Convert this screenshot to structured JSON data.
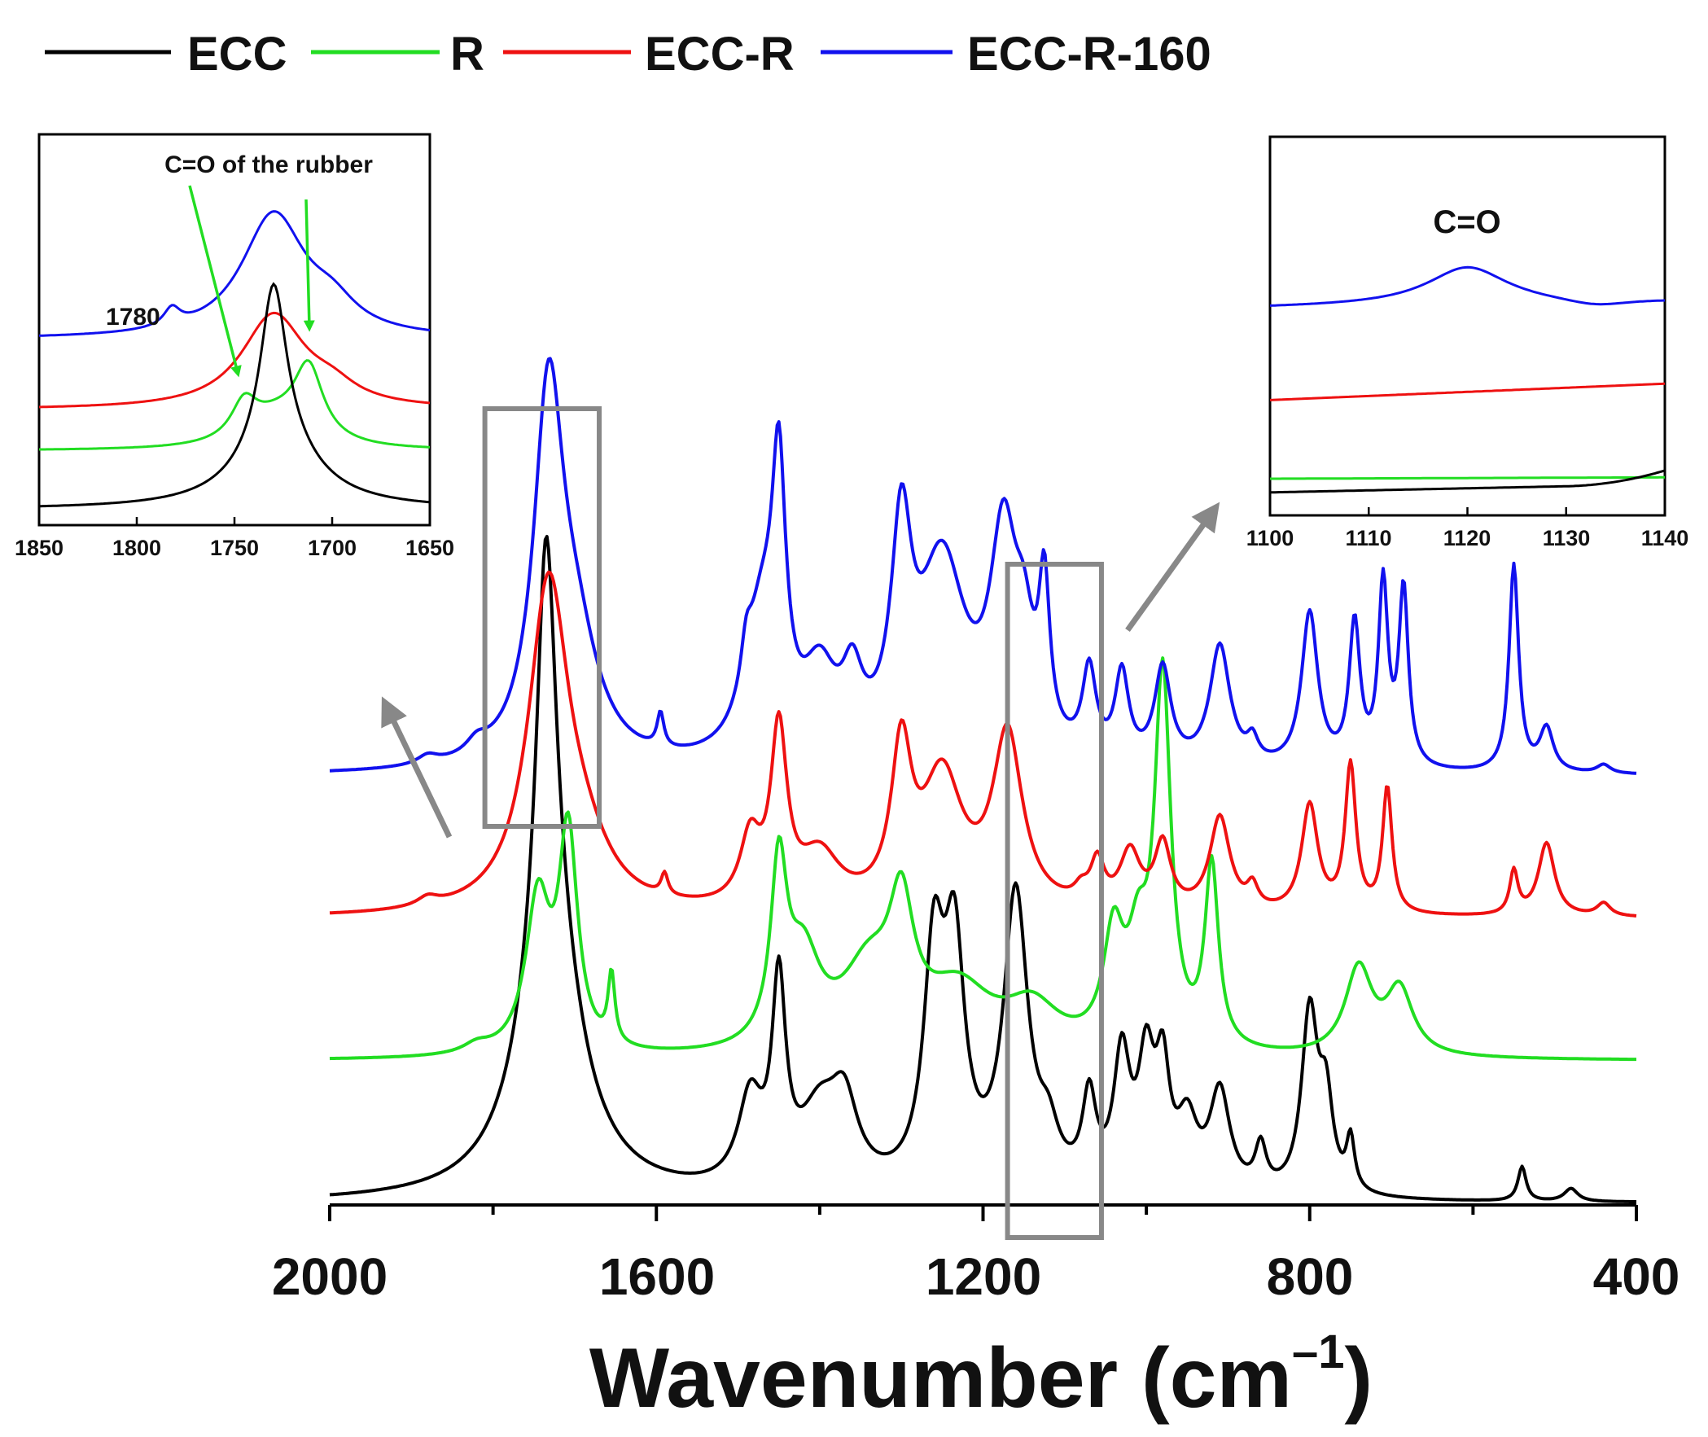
{
  "chart_data": {
    "type": "line",
    "title": "",
    "xlabel": "Wavenumber (cm",
    "xlabel_sup": "–1",
    "xlabel_close": ")",
    "ylabel": "",
    "xlim": [
      2000,
      400
    ],
    "xticks": [
      "2000",
      "1600",
      "1200",
      "800",
      "400"
    ],
    "legend": [
      {
        "name": "ECC",
        "color": "#000000"
      },
      {
        "name": "R",
        "color": "#22dd22"
      },
      {
        "name": "ECC-R",
        "color": "#ee1111"
      },
      {
        "name": "ECC-R-160",
        "color": "#1111ee"
      }
    ],
    "series": [
      {
        "name": "ECC",
        "color": "#000000",
        "offset": 0,
        "peaks": [
          [
            1735,
            0.9,
            14
          ],
          [
            1730,
            0.65,
            42
          ],
          [
            1450,
            0.45,
            10
          ],
          [
            1485,
            0.2,
            18
          ],
          [
            1400,
            0.17,
            30
          ],
          [
            1370,
            0.17,
            20
          ],
          [
            1260,
            0.52,
            15
          ],
          [
            1235,
            0.52,
            15
          ],
          [
            1160,
            0.68,
            18
          ],
          [
            1120,
            0.1,
            15
          ],
          [
            1070,
            0.2,
            10
          ],
          [
            1030,
            0.3,
            12
          ],
          [
            1000,
            0.28,
            12
          ],
          [
            980,
            0.25,
            10
          ],
          [
            950,
            0.15,
            15
          ],
          [
            910,
            0.23,
            15
          ],
          [
            860,
            0.1,
            8
          ],
          [
            800,
            0.42,
            12
          ],
          [
            780,
            0.2,
            10
          ],
          [
            750,
            0.12,
            6
          ],
          [
            540,
            0.08,
            6
          ],
          [
            480,
            0.03,
            10
          ]
        ]
      },
      {
        "name": "R",
        "color": "#22dd22",
        "offset": 0.33,
        "peaks": [
          [
            1745,
            0.35,
            18
          ],
          [
            1708,
            0.5,
            14
          ],
          [
            1820,
            0.02,
            20
          ],
          [
            1655,
            0.16,
            5
          ],
          [
            1450,
            0.4,
            12
          ],
          [
            1420,
            0.2,
            25
          ],
          [
            1340,
            0.18,
            40
          ],
          [
            1300,
            0.28,
            18
          ],
          [
            1230,
            0.14,
            50
          ],
          [
            1140,
            0.1,
            40
          ],
          [
            1040,
            0.25,
            15
          ],
          [
            980,
            0.85,
            12
          ],
          [
            1010,
            0.2,
            15
          ],
          [
            920,
            0.42,
            10
          ],
          [
            740,
            0.2,
            20
          ],
          [
            690,
            0.15,
            20
          ]
        ]
      },
      {
        "name": "ECC-R",
        "color": "#ee1111",
        "offset": 0.66,
        "peaks": [
          [
            1732,
            0.75,
            30
          ],
          [
            1690,
            0.1,
            40
          ],
          [
            1880,
            0.02,
            15
          ],
          [
            1590,
            0.05,
            5
          ],
          [
            1450,
            0.4,
            12
          ],
          [
            1485,
            0.15,
            15
          ],
          [
            1400,
            0.12,
            30
          ],
          [
            1300,
            0.35,
            15
          ],
          [
            1250,
            0.3,
            30
          ],
          [
            1170,
            0.4,
            22
          ],
          [
            1080,
            0.03,
            10
          ],
          [
            1060,
            0.1,
            10
          ],
          [
            1020,
            0.13,
            15
          ],
          [
            980,
            0.15,
            12
          ],
          [
            910,
            0.22,
            15
          ],
          [
            870,
            0.05,
            8
          ],
          [
            800,
            0.25,
            12
          ],
          [
            750,
            0.34,
            8
          ],
          [
            705,
            0.29,
            7
          ],
          [
            550,
            0.1,
            6
          ],
          [
            510,
            0.17,
            12
          ],
          [
            440,
            0.03,
            10
          ]
        ]
      },
      {
        "name": "ECC-R-160",
        "color": "#1111ee",
        "offset": 0.99,
        "peaks": [
          [
            1732,
            0.82,
            22
          ],
          [
            1700,
            0.25,
            35
          ],
          [
            1820,
            0.03,
            15
          ],
          [
            1880,
            0.02,
            15
          ],
          [
            1595,
            0.08,
            5
          ],
          [
            1450,
            0.55,
            10
          ],
          [
            1470,
            0.32,
            25
          ],
          [
            1490,
            0.1,
            8
          ],
          [
            1400,
            0.18,
            25
          ],
          [
            1360,
            0.15,
            15
          ],
          [
            1300,
            0.48,
            15
          ],
          [
            1250,
            0.45,
            35
          ],
          [
            1175,
            0.48,
            20
          ],
          [
            1125,
            0.35,
            8
          ],
          [
            1150,
            0.2,
            15
          ],
          [
            1070,
            0.2,
            10
          ],
          [
            1030,
            0.2,
            10
          ],
          [
            980,
            0.22,
            12
          ],
          [
            910,
            0.28,
            15
          ],
          [
            870,
            0.05,
            8
          ],
          [
            800,
            0.36,
            12
          ],
          [
            745,
            0.33,
            8
          ],
          [
            710,
            0.42,
            7
          ],
          [
            685,
            0.41,
            7
          ],
          [
            550,
            0.48,
            7
          ],
          [
            510,
            0.1,
            10
          ],
          [
            440,
            0.02,
            10
          ]
        ]
      }
    ],
    "highlight_boxes": [
      [
        1810,
        1670
      ],
      [
        1170,
        1055
      ]
    ],
    "insets": [
      {
        "id": "carbonyl",
        "xlim": [
          1850,
          1650
        ],
        "xticks": [
          "1850",
          "1800",
          "1750",
          "1700",
          "1650"
        ],
        "annotation": "C=O of the rubber",
        "peak_label": "1780",
        "curves": [
          {
            "name": "ECC-R-160",
            "color": "#1111ee",
            "offset": 0.62,
            "peaks": [
              [
                1730,
                0.42,
                20
              ],
              [
                1782,
                0.06,
                5
              ],
              [
                1700,
                0.08,
                15
              ]
            ]
          },
          {
            "name": "ECC-R",
            "color": "#ee1111",
            "offset": 0.38,
            "peaks": [
              [
                1730,
                0.32,
                20
              ],
              [
                1700,
                0.05,
                15
              ]
            ]
          },
          {
            "name": "R",
            "color": "#22dd22",
            "offset": 0.24,
            "peaks": [
              [
                1745,
                0.12,
                8
              ],
              [
                1712,
                0.24,
                9
              ],
              [
                1728,
                0.1,
                20
              ]
            ]
          },
          {
            "name": "ECC",
            "color": "#000000",
            "offset": 0.04,
            "peaks": [
              [
                1730,
                0.55,
                8
              ],
              [
                1728,
                0.22,
                24
              ]
            ]
          }
        ]
      },
      {
        "id": "co",
        "xlim": [
          1100,
          1140
        ],
        "xticks": [
          "1100",
          "1110",
          "1120",
          "1130",
          "1140"
        ],
        "annotation": "C=O",
        "curves": [
          {
            "name": "ECC-R-160",
            "color": "#1111ee",
            "base": 0.6,
            "slope": 0.0005,
            "peaks": [
              [
                1120,
                0.11,
                5
              ]
            ]
          },
          {
            "name": "ECC-R",
            "color": "#ee1111",
            "base": 0.33,
            "slope": 0.0012,
            "peaks": []
          },
          {
            "name": "R",
            "color": "#22dd22",
            "base": 0.1,
            "slope": 0.0001,
            "peaks": []
          },
          {
            "name": "ECC",
            "color": "#000000",
            "base": 0.06,
            "slope": 0.0006,
            "rise": [
              1130,
              0.04
            ],
            "peaks": []
          }
        ]
      }
    ]
  }
}
